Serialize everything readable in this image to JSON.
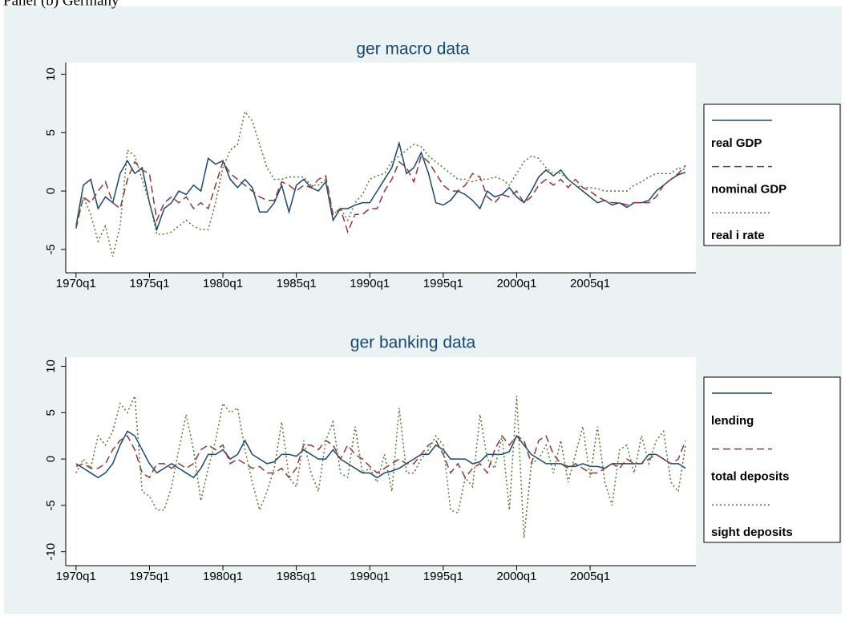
{
  "caption": "Panel (b) Germany",
  "chart_data": [
    {
      "type": "line",
      "title": "ger macro data",
      "x": [
        1970,
        1970.5,
        1971,
        1971.5,
        1972,
        1972.5,
        1973,
        1973.5,
        1974,
        1974.5,
        1975,
        1975.5,
        1976,
        1976.5,
        1977,
        1977.5,
        1978,
        1978.5,
        1979,
        1979.5,
        1980,
        1980.5,
        1981,
        1981.5,
        1982,
        1982.5,
        1983,
        1983.5,
        1984,
        1984.5,
        1985,
        1985.5,
        1986,
        1986.5,
        1987,
        1987.5,
        1988,
        1988.5,
        1989,
        1989.5,
        1990,
        1990.5,
        1991,
        1991.5,
        1992,
        1992.5,
        1993,
        1993.5,
        1994,
        1994.5,
        1995,
        1995.5,
        1996,
        1996.5,
        1997,
        1997.5,
        1998,
        1998.5,
        1999,
        1999.5,
        2000,
        2000.5,
        2001,
        2001.5,
        2002,
        2002.5,
        2003,
        2003.5,
        2004,
        2004.5,
        2005,
        2005.5,
        2006,
        2006.5,
        2007,
        2007.5,
        2008,
        2008.5,
        2009,
        2009.5,
        2010,
        2010.5,
        2011,
        2011.5
      ],
      "xlim": [
        1969.3,
        2012.2
      ],
      "xticks": [
        {
          "value": 1970,
          "label": "1970q1"
        },
        {
          "value": 1975,
          "label": "1975q1"
        },
        {
          "value": 1980,
          "label": "1980q1"
        },
        {
          "value": 1985,
          "label": "1985q1"
        },
        {
          "value": 1990,
          "label": "1990q1"
        },
        {
          "value": 1995,
          "label": "1995q1"
        },
        {
          "value": 2000,
          "label": "2000q1"
        },
        {
          "value": 2005,
          "label": "2005q1"
        }
      ],
      "ylim": [
        -7,
        11
      ],
      "yticks": [
        -5,
        0,
        5,
        10
      ],
      "series": [
        {
          "name": "real GDP",
          "color": "#1a476f",
          "style": "solid",
          "values": [
            -3,
            0.5,
            1,
            -1.5,
            -0.5,
            -1,
            1.5,
            2.6,
            1.5,
            2,
            -1,
            -3.3,
            -1.5,
            -1,
            0,
            -0.3,
            0.5,
            0,
            2.8,
            2.3,
            2.6,
            1,
            0.3,
            1,
            0.3,
            -1.8,
            -1.8,
            -1,
            0.5,
            -1.8,
            0.5,
            1,
            0.3,
            0,
            0.8,
            -2.5,
            -1.5,
            -1.5,
            -1.2,
            -1,
            -1,
            0,
            1,
            2,
            4.1,
            1.5,
            2,
            3.3,
            1.5,
            -1,
            -1.2,
            -0.8,
            0,
            -0.3,
            -0.8,
            -1.5,
            0,
            -0.5,
            -0.3,
            0.3,
            -0.5,
            -1,
            0,
            1.2,
            1.8,
            1.3,
            1.8,
            1,
            0.5,
            0,
            -0.5,
            -1,
            -0.8,
            -1.2,
            -1,
            -1.4,
            -1,
            -1,
            -0.8,
            0,
            0.5,
            1,
            1.4,
            1.6
          ]
        },
        {
          "name": "nominal GDP",
          "color": "#90353b",
          "style": "dash",
          "values": [
            -3.2,
            -0.5,
            -1,
            0,
            0.8,
            -1,
            -1.5,
            1,
            2.5,
            1.8,
            1.5,
            -2.5,
            -1,
            -0.5,
            -1,
            -0.5,
            -1.5,
            -1,
            -1.5,
            0.5,
            2.5,
            1.5,
            1,
            0.5,
            0,
            -0.5,
            -0.8,
            -0.8,
            0.8,
            0.5,
            0,
            0.5,
            0.3,
            1,
            1.3,
            -2,
            -1.5,
            -3.5,
            -2,
            -2,
            -1.5,
            -1.5,
            0,
            1,
            2.5,
            2,
            0.8,
            3,
            2.5,
            1.5,
            0.5,
            0,
            0,
            0.5,
            1.5,
            1.2,
            -0.5,
            -1,
            -0.3,
            -0.5,
            0,
            -1,
            -0.5,
            0.5,
            1,
            0.5,
            1,
            0.3,
            1,
            0.3,
            0,
            -0.5,
            -0.8,
            -1,
            -1,
            -1.2,
            -1,
            -1,
            -1,
            -0.5,
            0.5,
            1,
            1.5,
            2.2
          ]
        },
        {
          "name": "real i rate",
          "color": "#55752f",
          "style": "dot",
          "values": [
            -3,
            -0.5,
            -2,
            -4.3,
            -3,
            -5.6,
            -3,
            3.5,
            3,
            1,
            -1,
            -3.7,
            -3.7,
            -3.5,
            -3,
            -2.5,
            -3,
            -3.3,
            -3.3,
            -1,
            2,
            3.5,
            4,
            6.8,
            6,
            4,
            2,
            1,
            1,
            1.2,
            1.2,
            1.2,
            0.5,
            0.5,
            1,
            -2,
            -1.5,
            -2.5,
            -1,
            -0.3,
            1,
            1.3,
            1.5,
            2.5,
            3,
            3.5,
            4,
            3.8,
            3,
            2.5,
            2,
            1.5,
            1,
            1,
            0.8,
            1,
            1,
            1.2,
            1,
            0.5,
            1.5,
            2.5,
            3,
            2.8,
            2,
            1.5,
            1.5,
            1,
            0.5,
            0.3,
            0.3,
            0.2,
            0,
            0,
            0,
            0,
            0.5,
            0.8,
            1.2,
            1.5,
            1.5,
            1.5,
            2,
            1.8
          ]
        }
      ]
    },
    {
      "type": "line",
      "title": "ger banking data",
      "x": [
        1970,
        1970.5,
        1971,
        1971.5,
        1972,
        1972.5,
        1973,
        1973.5,
        1974,
        1974.5,
        1975,
        1975.5,
        1976,
        1976.5,
        1977,
        1977.5,
        1978,
        1978.5,
        1979,
        1979.5,
        1980,
        1980.5,
        1981,
        1981.5,
        1982,
        1982.5,
        1983,
        1983.5,
        1984,
        1984.5,
        1985,
        1985.5,
        1986,
        1986.5,
        1987,
        1987.5,
        1988,
        1988.5,
        1989,
        1989.5,
        1990,
        1990.5,
        1991,
        1991.5,
        1992,
        1992.5,
        1993,
        1993.5,
        1994,
        1994.5,
        1995,
        1995.5,
        1996,
        1996.5,
        1997,
        1997.5,
        1998,
        1998.5,
        1999,
        1999.5,
        2000,
        2000.5,
        2001,
        2001.5,
        2002,
        2002.5,
        2003,
        2003.5,
        2004,
        2004.5,
        2005,
        2005.5,
        2006,
        2006.5,
        2007,
        2007.5,
        2008,
        2008.5,
        2009,
        2009.5,
        2010,
        2010.5,
        2011,
        2011.5
      ],
      "xlim": [
        1969.3,
        2012.2
      ],
      "xticks": [
        {
          "value": 1970,
          "label": "1970q1"
        },
        {
          "value": 1975,
          "label": "1975q1"
        },
        {
          "value": 1980,
          "label": "1980q1"
        },
        {
          "value": 1985,
          "label": "1985q1"
        },
        {
          "value": 1990,
          "label": "1990q1"
        },
        {
          "value": 1995,
          "label": "1995q1"
        },
        {
          "value": 2000,
          "label": "2000q1"
        },
        {
          "value": 2005,
          "label": "2005q1"
        }
      ],
      "ylim": [
        -11.5,
        11
      ],
      "yticks": [
        -10,
        -5,
        0,
        5,
        10
      ],
      "series": [
        {
          "name": "lending",
          "color": "#1a476f",
          "style": "solid",
          "values": [
            -0.5,
            -1,
            -1.5,
            -2,
            -1.5,
            -0.5,
            1.5,
            3,
            2.5,
            1,
            -0.5,
            -1.5,
            -1,
            -0.5,
            -1,
            -1.5,
            -2,
            -1,
            0.5,
            0.5,
            1,
            0,
            0.5,
            2,
            0.5,
            0,
            -0.5,
            -0.3,
            0.5,
            0.5,
            0.3,
            1,
            0.5,
            0,
            0,
            1,
            0,
            -0.5,
            -1,
            -1.5,
            -1.5,
            -2,
            -1.5,
            -1.3,
            -1,
            -0.5,
            0,
            0.5,
            0.5,
            1.5,
            1,
            0,
            0,
            0,
            -0.5,
            -0.3,
            0.5,
            0.5,
            0.5,
            0.8,
            2.5,
            1.5,
            0.5,
            0,
            -0.5,
            -0.5,
            -0.5,
            -0.8,
            -0.8,
            -0.5,
            -0.8,
            -0.8,
            -1,
            -0.5,
            -0.5,
            -0.5,
            -0.5,
            -0.5,
            0.5,
            0.5,
            0,
            -0.5,
            -0.5,
            -1
          ]
        },
        {
          "name": "total deposits",
          "color": "#90353b",
          "style": "dash",
          "values": [
            -0.8,
            -0.5,
            -1,
            -1,
            -0.5,
            1,
            2,
            2.5,
            1,
            -1.5,
            -2,
            -0.5,
            -0.5,
            -1,
            -0.5,
            -1,
            -0.5,
            1,
            1.5,
            1,
            1.5,
            -0.5,
            0,
            -0.5,
            -1,
            -0.8,
            -1.5,
            -1.5,
            -1,
            -2,
            -1,
            1.5,
            1.5,
            1,
            2,
            1.5,
            0,
            1.5,
            0.5,
            0,
            -0.8,
            -1.5,
            -1,
            -0.5,
            0,
            -0.5,
            -0.5,
            0.5,
            1.5,
            2,
            0.5,
            -1.5,
            -0.5,
            -2,
            -1,
            -0.5,
            -1.5,
            1,
            2.5,
            1.5,
            2.5,
            2,
            -0.5,
            2,
            2.5,
            0.5,
            -0.5,
            -1,
            -0.5,
            -1,
            -1.5,
            -1.5,
            -1,
            -0.5,
            -1,
            0,
            -0.5,
            -0.5,
            0,
            0.5,
            0,
            -0.5,
            0,
            2
          ]
        },
        {
          "name": "sight deposits",
          "color": "#55752f",
          "style": "dot",
          "values": [
            -1.5,
            0,
            -1,
            2.5,
            1.5,
            3,
            6,
            5,
            6.8,
            -3.5,
            -4,
            -5.5,
            -5.5,
            -3,
            1,
            4.8,
            1,
            -4.5,
            -1,
            2,
            6,
            5,
            5.5,
            1,
            -2.5,
            -5.5,
            -3.5,
            -1,
            4,
            -2,
            -3,
            2,
            -1.5,
            -3.5,
            2,
            4,
            -1.5,
            -2,
            3.5,
            -1.5,
            -1,
            -2.5,
            0.5,
            -3.5,
            5.5,
            -1.5,
            -1.5,
            0,
            1,
            2.5,
            1.5,
            -5.5,
            -5.8,
            -2,
            -3,
            4.8,
            0,
            -1,
            2.5,
            -5.5,
            6.8,
            -8.5,
            -0.5,
            0,
            1.5,
            -1.5,
            2,
            -2.5,
            0.5,
            3.5,
            -2,
            3.5,
            -2.5,
            -5,
            1,
            1.5,
            -1.5,
            2.5,
            -0.5,
            2,
            3,
            -2.5,
            -3.5,
            1.5
          ]
        }
      ]
    }
  ]
}
